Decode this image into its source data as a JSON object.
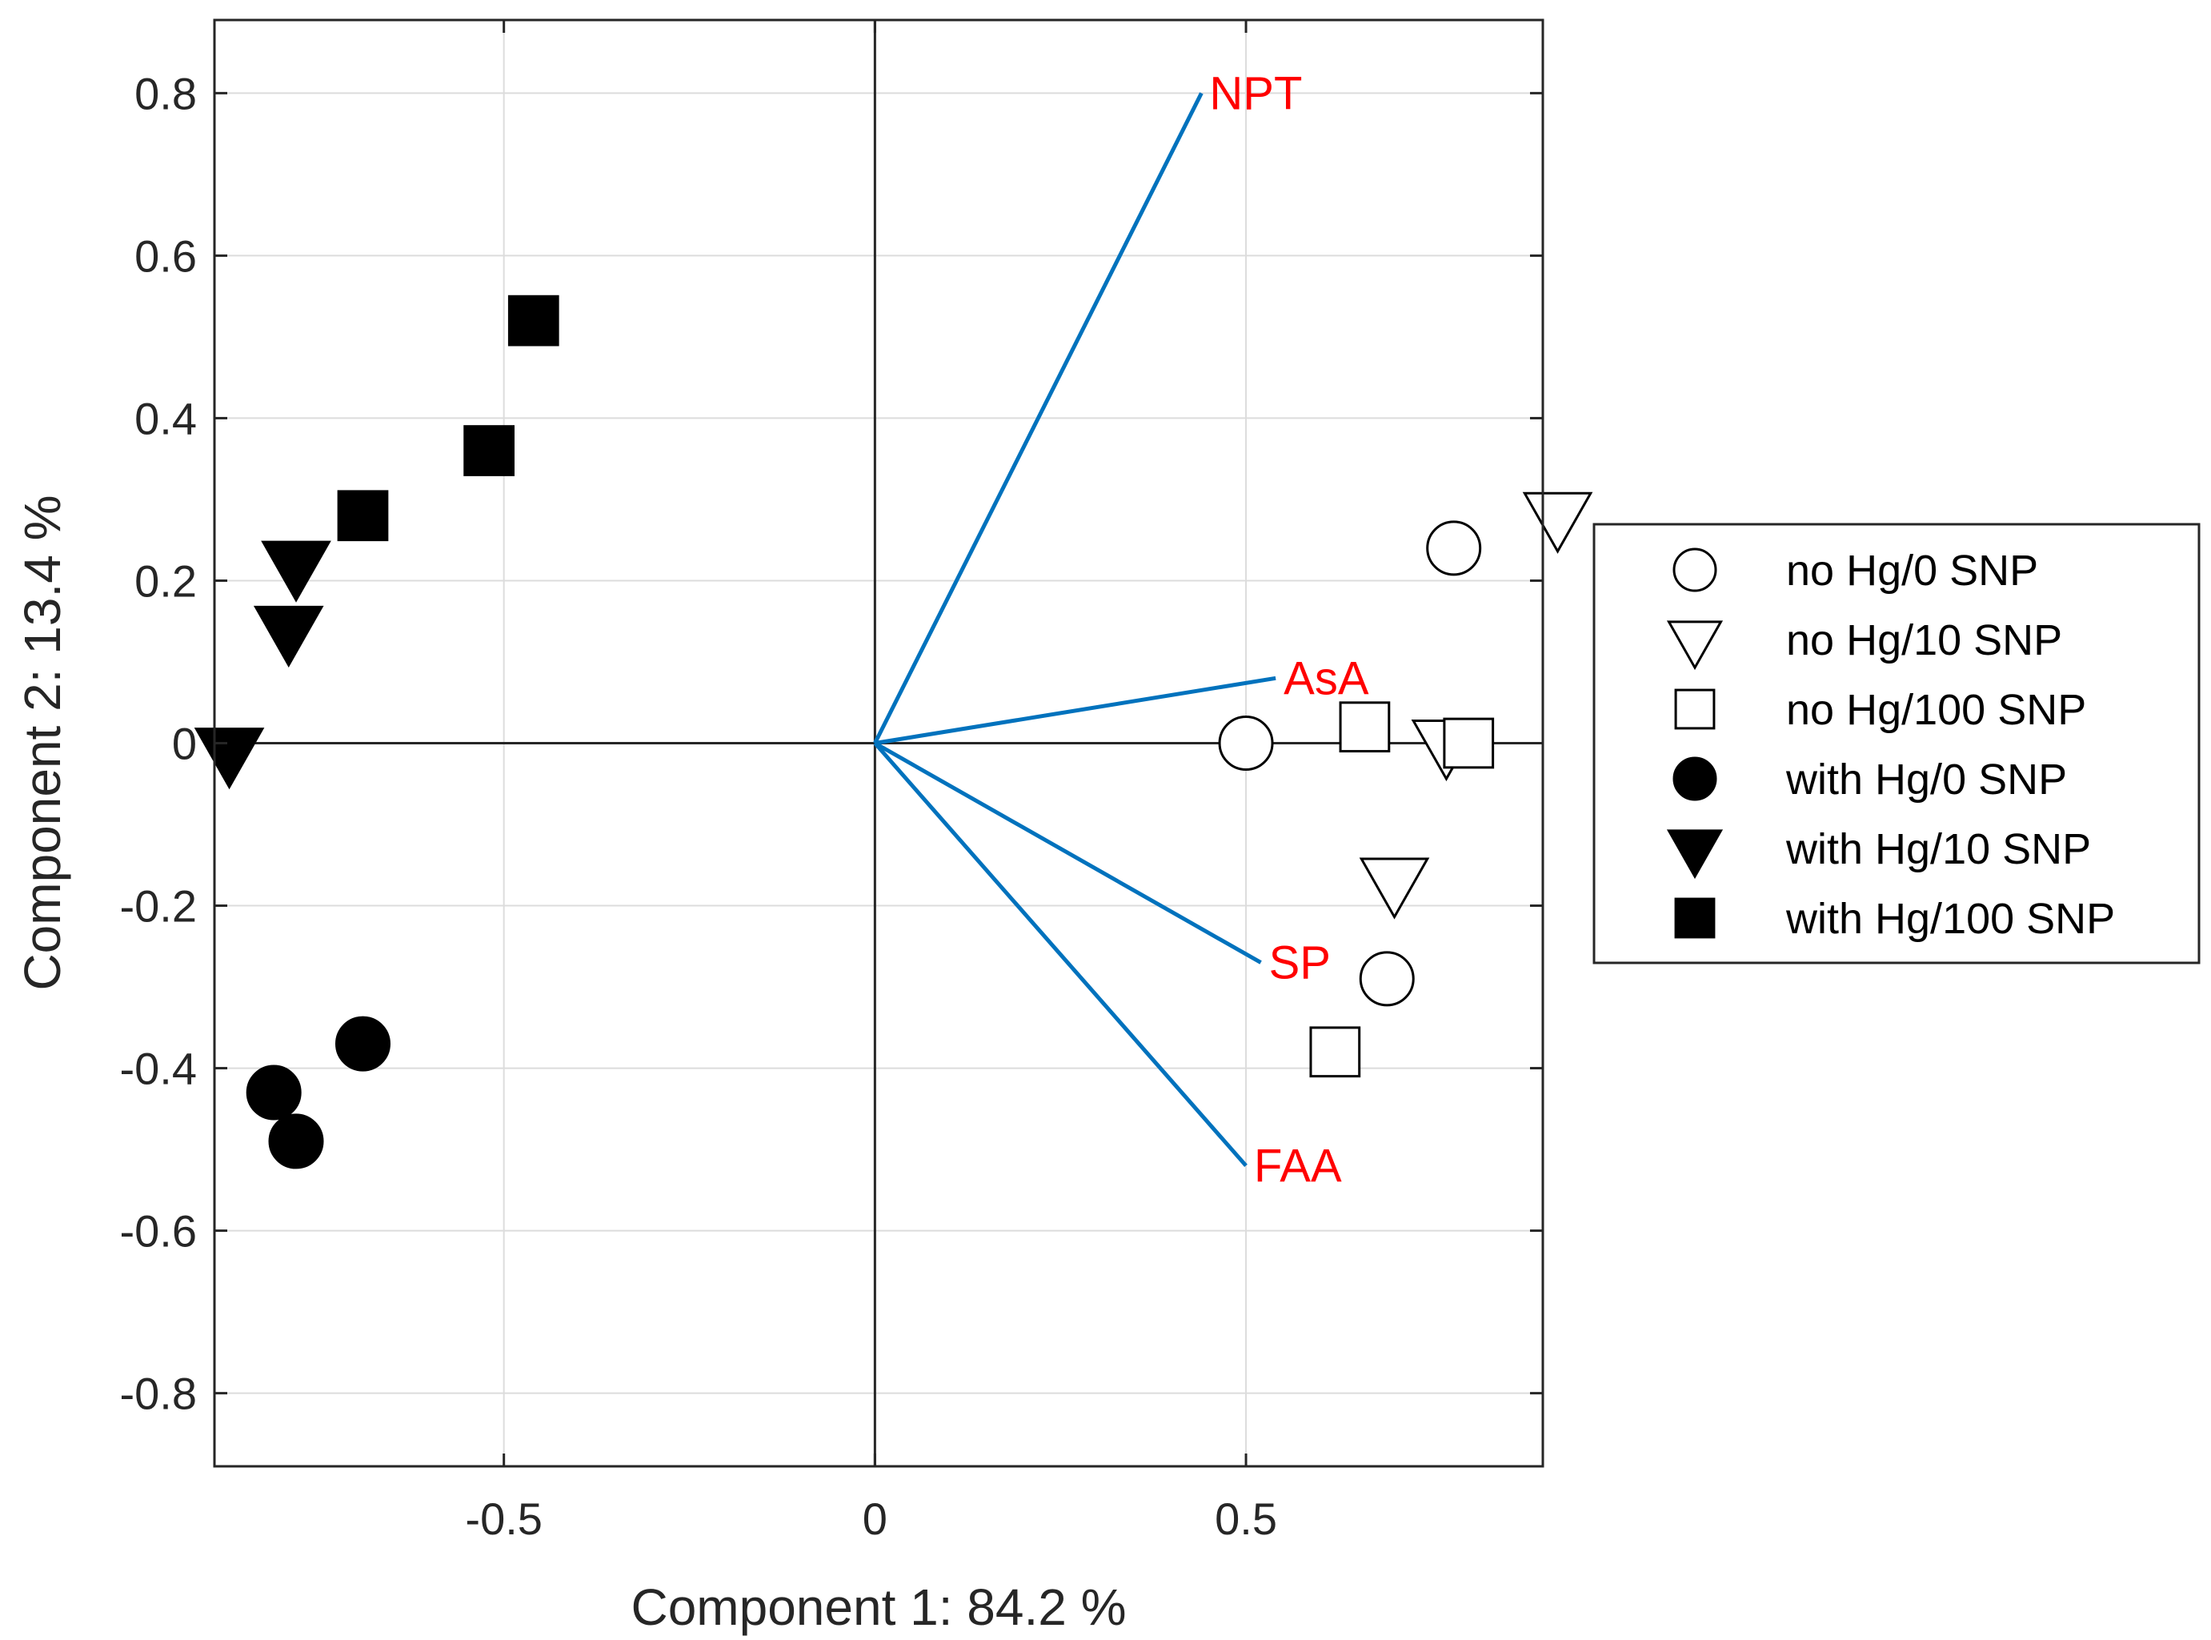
{
  "chart_data": {
    "type": "scatter",
    "subtype": "biplot",
    "title": "",
    "xlabel": "Component 1: 84.2 %",
    "ylabel": "Component 2: 13.4 %",
    "xlim": [
      -0.89,
      0.9
    ],
    "ylim": [
      -0.89,
      0.89
    ],
    "grid": true,
    "xticks": [
      -0.5,
      0,
      0.5
    ],
    "xtick_labels": [
      "-0.5",
      "0",
      "0.5"
    ],
    "yticks": [
      0.8,
      0.6,
      0.4,
      0.2,
      0,
      -0.2,
      -0.4,
      -0.6,
      -0.8
    ],
    "ytick_labels": [
      "0.8",
      "0.6",
      "0.4",
      "0.2",
      "0",
      "-0.2",
      "-0.4",
      "-0.6",
      "-0.8"
    ],
    "vector_color": "#0072bd",
    "vector_label_color": "#ff0000",
    "vectors": [
      {
        "name": "NPT",
        "x": 0.44,
        "y": 0.8
      },
      {
        "name": "AsA",
        "x": 0.54,
        "y": 0.08
      },
      {
        "name": "SP",
        "x": 0.52,
        "y": -0.27
      },
      {
        "name": "FAA",
        "x": 0.5,
        "y": -0.52
      }
    ],
    "series": [
      {
        "name": "no Hg/0 SNP",
        "marker": "circle",
        "filled": false,
        "points": [
          [
            0.78,
            0.24
          ],
          [
            0.5,
            0.0
          ],
          [
            0.69,
            -0.29
          ]
        ]
      },
      {
        "name": "no Hg/10 SNP",
        "marker": "triangle-down",
        "filled": false,
        "points": [
          [
            0.92,
            0.28
          ],
          [
            0.77,
            0.0
          ],
          [
            0.7,
            -0.17
          ]
        ]
      },
      {
        "name": "no Hg/100 SNP",
        "marker": "square",
        "filled": false,
        "points": [
          [
            0.66,
            0.02
          ],
          [
            0.8,
            0.0
          ],
          [
            0.62,
            -0.38
          ]
        ]
      },
      {
        "name": "with Hg/0 SNP",
        "marker": "circle",
        "filled": true,
        "points": [
          [
            -0.69,
            -0.37
          ],
          [
            -0.81,
            -0.43
          ],
          [
            -0.78,
            -0.49
          ]
        ]
      },
      {
        "name": "with Hg/10 SNP",
        "marker": "triangle-down",
        "filled": true,
        "points": [
          [
            -0.78,
            0.22
          ],
          [
            -0.79,
            0.14
          ],
          [
            -0.87,
            -0.01
          ]
        ]
      },
      {
        "name": "with Hg/100 SNP",
        "marker": "square",
        "filled": true,
        "points": [
          [
            -0.46,
            0.52
          ],
          [
            -0.52,
            0.36
          ],
          [
            -0.69,
            0.28
          ]
        ]
      }
    ],
    "legend": {
      "location": "right",
      "entries": [
        "no Hg/0 SNP",
        "no Hg/10 SNP",
        "no Hg/100 SNP",
        "with Hg/0 SNP",
        "with Hg/10 SNP",
        "with Hg/100 SNP"
      ]
    }
  }
}
